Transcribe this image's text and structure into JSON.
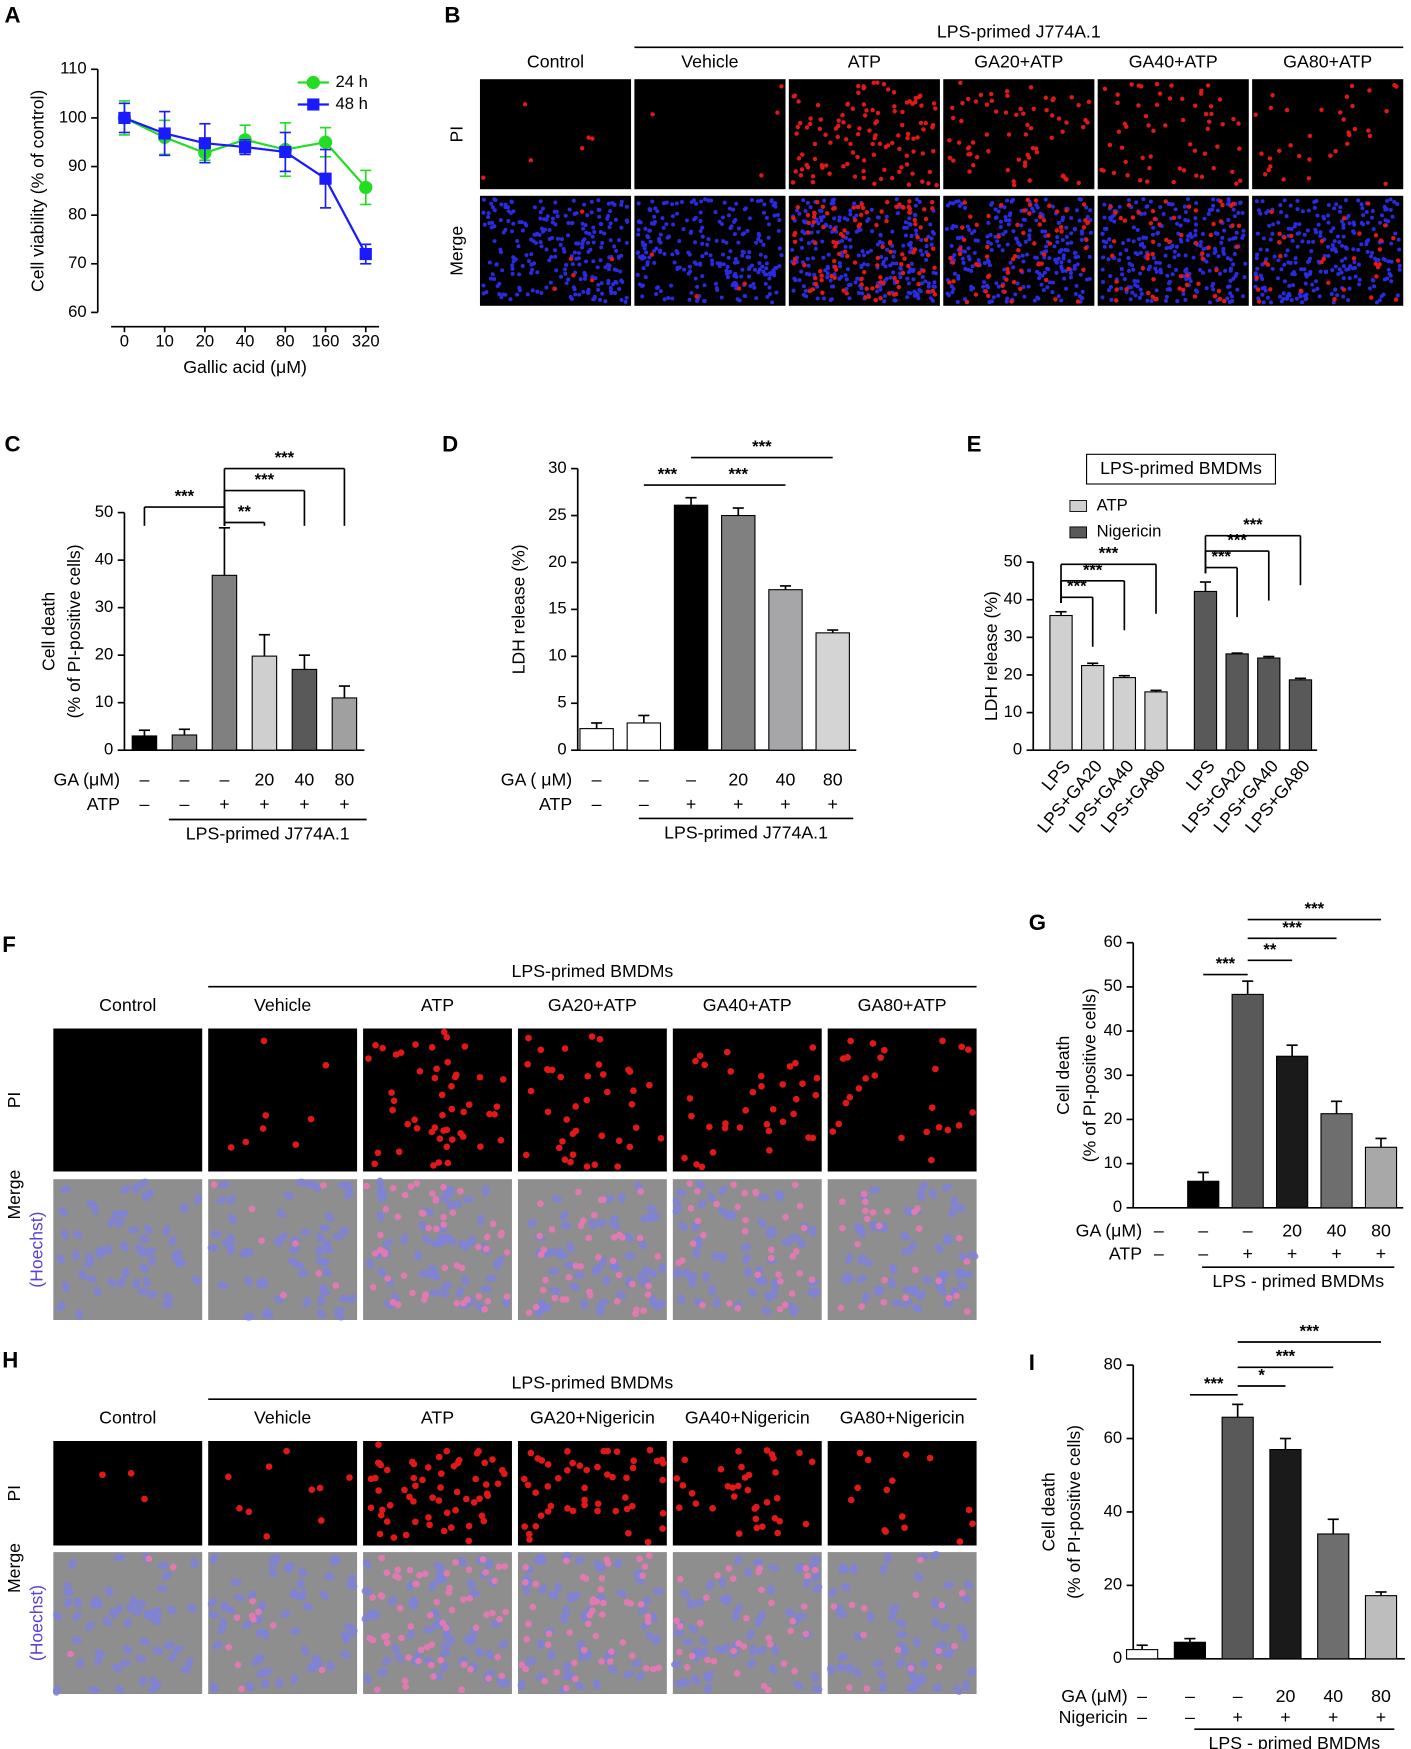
{
  "chart_data": [
    {
      "type": "line",
      "panel_label": "A",
      "ylabel": "Cell viability (% of control)",
      "xlabel": "Gallic acid (μM)",
      "categories": [
        "0",
        "10",
        "20",
        "40",
        "80",
        "160",
        "320"
      ],
      "series": [
        {
          "name": "24 h",
          "color": "#22dd22",
          "marker": "circle",
          "values": [
            100,
            96,
            92.8,
            95.5,
            93.5,
            95,
            85.7
          ],
          "errors": [
            3.5,
            3.5,
            1.5,
            3,
            5.5,
            3,
            3.5
          ]
        },
        {
          "name": "48 h",
          "color": "#1a1aff",
          "marker": "square",
          "values": [
            100,
            96.8,
            94.8,
            94,
            93,
            87.5,
            72
          ],
          "errors": [
            3,
            4.5,
            4,
            1.5,
            4,
            6,
            2
          ]
        }
      ],
      "ylim": [
        60,
        110
      ],
      "yticks": [
        60,
        70,
        80,
        90,
        100,
        110
      ],
      "legend": "upper right"
    },
    {
      "type": "bar",
      "panel_label": "C",
      "ylabel": [
        "Cell death",
        "(% of PI-positive cells)"
      ],
      "values": [
        3,
        3.2,
        36.8,
        19.8,
        17,
        11
      ],
      "errors": [
        1.2,
        1.2,
        10,
        4.5,
        3,
        2.5
      ],
      "colors": [
        "#000000",
        "#808080",
        "#808080",
        "#cfcfcf",
        "#595959",
        "#a0a0a0"
      ],
      "ylim": [
        0,
        50
      ],
      "yticks": [
        0,
        10,
        20,
        30,
        40,
        50
      ],
      "rows": [
        {
          "label": "GA (μM)",
          "values": [
            "–",
            "–",
            "–",
            "20",
            "40",
            "80"
          ]
        },
        {
          "label": "ATP",
          "values": [
            "–",
            "–",
            "+",
            "+",
            "+",
            "+"
          ]
        }
      ],
      "group_label": "LPS-primed J774A.1",
      "annotations": [
        {
          "label": "***",
          "from": 0,
          "to": 2
        },
        {
          "label": "**",
          "from": 2,
          "to": 3
        },
        {
          "label": "***",
          "from": 2,
          "to": 4
        },
        {
          "label": "***",
          "from": 2,
          "to": 5
        }
      ]
    },
    {
      "type": "bar",
      "panel_label": "D",
      "ylabel": "LDH release (%)",
      "values": [
        2.3,
        2.9,
        26.1,
        25,
        17.1,
        12.5
      ],
      "errors": [
        0.6,
        0.8,
        0.8,
        0.8,
        0.4,
        0.3
      ],
      "colors": [
        "#ffffff",
        "#ffffff",
        "#000000",
        "#808080",
        "#a6a6a8",
        "#d4d4d4"
      ],
      "ylim": [
        0,
        30
      ],
      "yticks": [
        0,
        5,
        10,
        15,
        20,
        25,
        30
      ],
      "rows": [
        {
          "label": "GA ( μM)",
          "values": [
            "–",
            "–",
            "–",
            "20",
            "40",
            "80"
          ]
        },
        {
          "label": "ATP",
          "values": [
            "–",
            "–",
            "+",
            "+",
            "+",
            "+"
          ]
        }
      ],
      "group_label": "LPS-primed J774A.1",
      "annotations": [
        {
          "label": "***",
          "from": 1,
          "to": 2
        },
        {
          "label": "***",
          "from": 2,
          "to": 4
        },
        {
          "label": "***",
          "from": 2,
          "to": 5
        }
      ]
    },
    {
      "type": "grouped_bar",
      "panel_label": "E",
      "title": "LPS-primed BMDMs",
      "ylabel": "LDH release (%)",
      "categories": [
        "LPS",
        "LPS+GA20",
        "LPS+GA40",
        "LPS+GA80"
      ],
      "series": [
        {
          "name": "ATP",
          "color": "#d0d0d0",
          "values": [
            35.8,
            22.5,
            19.3,
            15.5
          ],
          "errors": [
            1,
            0.6,
            0.5,
            0.4
          ]
        },
        {
          "name": "Nigericin",
          "color": "#595959",
          "values": [
            42.2,
            25.6,
            24.5,
            18.7
          ],
          "errors": [
            2.5,
            0.2,
            0.4,
            0.4
          ]
        }
      ],
      "ylim": [
        0,
        50
      ],
      "yticks": [
        0,
        10,
        20,
        30,
        40,
        50
      ],
      "legend": "upper left",
      "annotations": [
        {
          "series": 0,
          "label": "***",
          "from": 0,
          "to": 1
        },
        {
          "series": 0,
          "label": "***",
          "from": 0,
          "to": 2
        },
        {
          "series": 0,
          "label": "***",
          "from": 0,
          "to": 3
        },
        {
          "series": 1,
          "label": "***",
          "from": 0,
          "to": 1
        },
        {
          "series": 1,
          "label": "***",
          "from": 0,
          "to": 2
        },
        {
          "series": 1,
          "label": "***",
          "from": 0,
          "to": 3
        }
      ]
    },
    {
      "type": "bar",
      "panel_label": "G",
      "ylabel": [
        "Cell death",
        "(% of PI-positive cells)"
      ],
      "values": [
        0,
        6,
        48.3,
        34.3,
        21.3,
        13.7
      ],
      "errors": [
        0,
        2,
        3,
        2.5,
        2.8,
        2
      ],
      "colors": [
        "#000000",
        "#000000",
        "#595959",
        "#1a1a1a",
        "#6e6e6e",
        "#a8a8a8"
      ],
      "ylim": [
        0,
        60
      ],
      "yticks": [
        0,
        10,
        20,
        30,
        40,
        50,
        60
      ],
      "rows": [
        {
          "label": "GA (μM)",
          "values": [
            "–",
            "–",
            "–",
            "20",
            "40",
            "80"
          ]
        },
        {
          "label": "ATP",
          "values": [
            "–",
            "–",
            "+",
            "+",
            "+",
            "+"
          ]
        }
      ],
      "group_label": "LPS - primed BMDMs",
      "annotations": [
        {
          "label": "***",
          "from": 1,
          "to": 2
        },
        {
          "label": "**",
          "from": 2,
          "to": 3
        },
        {
          "label": "***",
          "from": 2,
          "to": 4
        },
        {
          "label": "***",
          "from": 2,
          "to": 5
        }
      ]
    },
    {
      "type": "bar",
      "panel_label": "I",
      "ylabel": [
        "Cell death",
        "(% of PI-positive cells)"
      ],
      "values": [
        2.5,
        4.5,
        65.8,
        57,
        34,
        17.2
      ],
      "errors": [
        1.2,
        1,
        3.5,
        3,
        4,
        1
      ],
      "colors": [
        "#ffffff",
        "#000000",
        "#595959",
        "#1a1a1a",
        "#6e6e6e",
        "#bdbdbd"
      ],
      "ylim": [
        0,
        80
      ],
      "yticks": [
        0,
        20,
        40,
        60,
        80
      ],
      "rows": [
        {
          "label": "GA (μM)",
          "values": [
            "–",
            "–",
            "–",
            "20",
            "40",
            "80"
          ]
        },
        {
          "label": "Nigericin",
          "values": [
            "–",
            "–",
            "+",
            "+",
            "+",
            "+"
          ]
        }
      ],
      "group_label": "LPS - primed BMDMs",
      "annotations": [
        {
          "label": "***",
          "from": 1,
          "to": 2
        },
        {
          "label": "*",
          "from": 2,
          "to": 3
        },
        {
          "label": "***",
          "from": 2,
          "to": 4
        },
        {
          "label": "***",
          "from": 2,
          "to": 5
        }
      ]
    }
  ],
  "image_panels": [
    {
      "panel_label": "B",
      "title": "LPS-primed J774A.1",
      "columns": [
        "Control",
        "Vehicle",
        "ATP",
        "GA20+ATP",
        "GA40+ATP",
        "GA80+ATP"
      ],
      "rows": [
        "PI",
        "Merge"
      ]
    },
    {
      "panel_label": "F",
      "title": "LPS-primed BMDMs",
      "columns": [
        "Control",
        "Vehicle",
        "ATP",
        "GA20+ATP",
        "GA40+ATP",
        "GA80+ATP"
      ],
      "rows": [
        "PI",
        "Merge"
      ],
      "stain": "(Hoechst)"
    },
    {
      "panel_label": "H",
      "title": "LPS-primed BMDMs",
      "columns": [
        "Control",
        "Vehicle",
        "ATP",
        "GA20+Nigericin",
        "GA40+Nigericin",
        "GA80+Nigericin"
      ],
      "rows": [
        "PI",
        "Merge"
      ],
      "stain": "(Hoechst)"
    }
  ]
}
